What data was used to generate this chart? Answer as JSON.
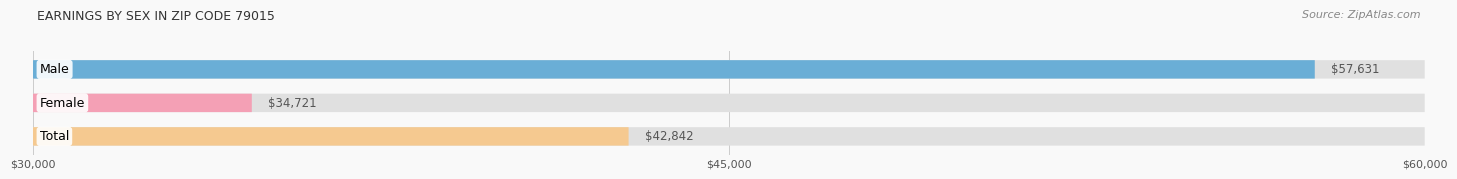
{
  "title": "EARNINGS BY SEX IN ZIP CODE 79015",
  "source": "Source: ZipAtlas.com",
  "categories": [
    "Male",
    "Female",
    "Total"
  ],
  "values": [
    57631,
    34721,
    42842
  ],
  "bar_colors": [
    "#6aaed6",
    "#f4a0b5",
    "#f5c990"
  ],
  "value_labels": [
    "$57,631",
    "$34,721",
    "$42,842"
  ],
  "xlim": [
    30000,
    60000
  ],
  "xticks": [
    30000,
    45000,
    60000
  ],
  "xtick_labels": [
    "$30,000",
    "$45,000",
    "$60,000"
  ],
  "bar_height": 0.55,
  "bg_color": "#f9f9f9",
  "title_fontsize": 9,
  "source_fontsize": 8,
  "label_fontsize": 9,
  "value_fontsize": 8.5
}
